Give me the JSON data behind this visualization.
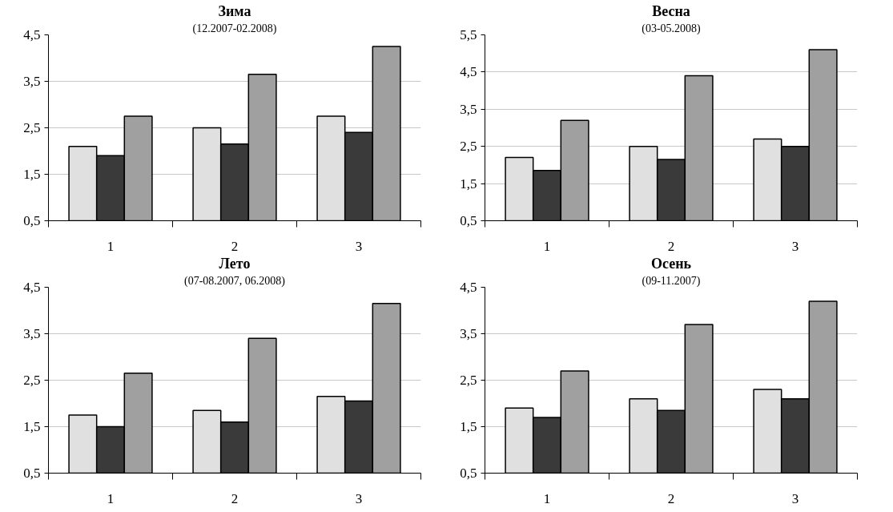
{
  "chart_data": [
    {
      "type": "bar",
      "title": "Зима",
      "subtitle": "(12.2007-02.2008)",
      "categories": [
        "1",
        "2",
        "3"
      ],
      "ylim": [
        0.5,
        4.5
      ],
      "yticks": [
        {
          "value": 0.5,
          "label": "0,5"
        },
        {
          "value": 1.5,
          "label": "1,5"
        },
        {
          "value": 2.5,
          "label": "2,5"
        },
        {
          "value": 3.5,
          "label": "3,5"
        },
        {
          "value": 4.5,
          "label": "4,5"
        }
      ],
      "grid": "y",
      "series": [
        {
          "color": "#e0e0e0",
          "values": [
            2.1,
            2.5,
            2.75
          ]
        },
        {
          "color": "#3a3a3a",
          "values": [
            1.9,
            2.15,
            2.4
          ]
        },
        {
          "color": "#a0a0a0",
          "values": [
            2.75,
            3.65,
            4.25
          ]
        }
      ]
    },
    {
      "type": "bar",
      "title": "Весна",
      "subtitle": "(03-05.2008)",
      "categories": [
        "1",
        "2",
        "3"
      ],
      "ylim": [
        0.5,
        5.5
      ],
      "yticks": [
        {
          "value": 0.5,
          "label": "0,5"
        },
        {
          "value": 1.5,
          "label": "1,5"
        },
        {
          "value": 2.5,
          "label": "2,5"
        },
        {
          "value": 3.5,
          "label": "3,5"
        },
        {
          "value": 4.5,
          "label": "4,5"
        },
        {
          "value": 5.5,
          "label": "5,5"
        }
      ],
      "grid": "y",
      "series": [
        {
          "color": "#e0e0e0",
          "values": [
            2.2,
            2.5,
            2.7
          ]
        },
        {
          "color": "#3a3a3a",
          "values": [
            1.85,
            2.15,
            2.5
          ]
        },
        {
          "color": "#a0a0a0",
          "values": [
            3.2,
            4.4,
            5.1
          ]
        }
      ]
    },
    {
      "type": "bar",
      "title": "Лето",
      "subtitle": "(07-08.2007, 06.2008)",
      "categories": [
        "1",
        "2",
        "3"
      ],
      "ylim": [
        0.5,
        4.5
      ],
      "yticks": [
        {
          "value": 0.5,
          "label": "0,5"
        },
        {
          "value": 1.5,
          "label": "1,5"
        },
        {
          "value": 2.5,
          "label": "2,5"
        },
        {
          "value": 3.5,
          "label": "3,5"
        },
        {
          "value": 4.5,
          "label": "4,5"
        }
      ],
      "grid": "y",
      "series": [
        {
          "color": "#e0e0e0",
          "values": [
            1.75,
            1.85,
            2.15
          ]
        },
        {
          "color": "#3a3a3a",
          "values": [
            1.5,
            1.6,
            2.05
          ]
        },
        {
          "color": "#a0a0a0",
          "values": [
            2.65,
            3.4,
            4.15
          ]
        }
      ]
    },
    {
      "type": "bar",
      "title": "Осень",
      "subtitle": "(09-11.2007)",
      "categories": [
        "1",
        "2",
        "3"
      ],
      "ylim": [
        0.5,
        4.5
      ],
      "yticks": [
        {
          "value": 0.5,
          "label": "0,5"
        },
        {
          "value": 1.5,
          "label": "1,5"
        },
        {
          "value": 2.5,
          "label": "2,5"
        },
        {
          "value": 3.5,
          "label": "3,5"
        },
        {
          "value": 4.5,
          "label": "4,5"
        }
      ],
      "grid": "y",
      "series": [
        {
          "color": "#e0e0e0",
          "values": [
            1.9,
            2.1,
            2.3
          ]
        },
        {
          "color": "#3a3a3a",
          "values": [
            1.7,
            1.85,
            2.1
          ]
        },
        {
          "color": "#a0a0a0",
          "values": [
            2.7,
            3.7,
            4.2
          ]
        }
      ]
    }
  ]
}
